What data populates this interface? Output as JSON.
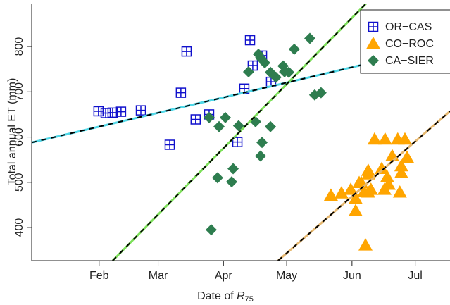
{
  "chart_data": {
    "type": "scatter",
    "y_label": "Total annual ET (mm)",
    "x_label": [
      "Date of ",
      "R",
      "75"
    ],
    "xlim": [
      0,
      198.5
    ],
    "ylim": [
      327,
      895
    ],
    "xticks": [
      {
        "value": 32,
        "label": "Feb"
      },
      {
        "value": 60,
        "label": "Mar"
      },
      {
        "value": 91,
        "label": "Apr"
      },
      {
        "value": 121,
        "label": "May"
      },
      {
        "value": 152,
        "label": "Jun"
      },
      {
        "value": 182,
        "label": "Jul"
      }
    ],
    "yticks": [
      400,
      500,
      600,
      700,
      800
    ],
    "legend": "top-right",
    "series": [
      {
        "name": "OR−CAS",
        "color": "#1010cc",
        "marker": "boxplus",
        "x": [
          31.7,
          35.1,
          38.4,
          42.4,
          51.8,
          65.5,
          70.8,
          73.5,
          77.8,
          84.2,
          97.6,
          100.9,
          103.6,
          104.9,
          109.3,
          113.6
        ],
        "values": [
          657,
          653,
          654,
          656,
          659,
          583,
          698,
          789,
          639,
          650,
          589,
          707,
          814,
          758,
          780,
          722
        ],
        "fit_color": "#4fd8e8",
        "fit_x": [
          0,
          198.5
        ],
        "fit_y": [
          588,
          805
        ]
      },
      {
        "name": "CO−ROC",
        "color": "#ffa500",
        "marker": "triangle",
        "x": [
          142.0,
          147.0,
          151.4,
          153.7,
          155.4,
          153.7,
          156.4,
          157.7,
          159.7,
          159.7,
          159.7,
          161.0,
          158.4,
          162.7,
          166.1,
          167.7,
          168.7,
          169.4,
          167.4,
          173.7,
          177.1,
          175.4,
          171.1,
          178.1,
          175.4,
          174.7
        ],
        "values": [
          471,
          476,
          484,
          464,
          499,
          437,
          499,
          479,
          518,
          526,
          478,
          484,
          361,
          595,
          530,
          595,
          512,
          495,
          484,
          595,
          595,
          536,
          558,
          555,
          521,
          478
        ],
        "fit_color": "#e6b870",
        "fit_x": [
          116.9,
          198.5
        ],
        "fit_y": [
          327,
          657
        ]
      },
      {
        "name": "CA−SIER",
        "color": "#2e7d4f",
        "marker": "diamond",
        "x": [
          84.2,
          91.9,
          88.9,
          95.6,
          94.9,
          98.2,
          85.2,
          88.2,
          102.9,
          106.2,
          108.6,
          109.3,
          107.6,
          108.6,
          110.6,
          113.3,
          113.3,
          115.9,
          119.3,
          120.0,
          122.0,
          124.6,
          132.0,
          134.3,
          137.3
        ],
        "values": [
          643,
          643,
          623,
          530,
          501,
          625,
          395,
          510,
          744,
          634,
          558,
          588,
          783,
          775,
          764,
          743,
          623,
          732,
          757,
          744,
          743,
          794,
          818,
          693,
          698
        ],
        "fit_color": "#7de05a",
        "fit_x": [
          38.4,
          158.7
        ],
        "fit_y": [
          327,
          895
        ]
      }
    ]
  }
}
